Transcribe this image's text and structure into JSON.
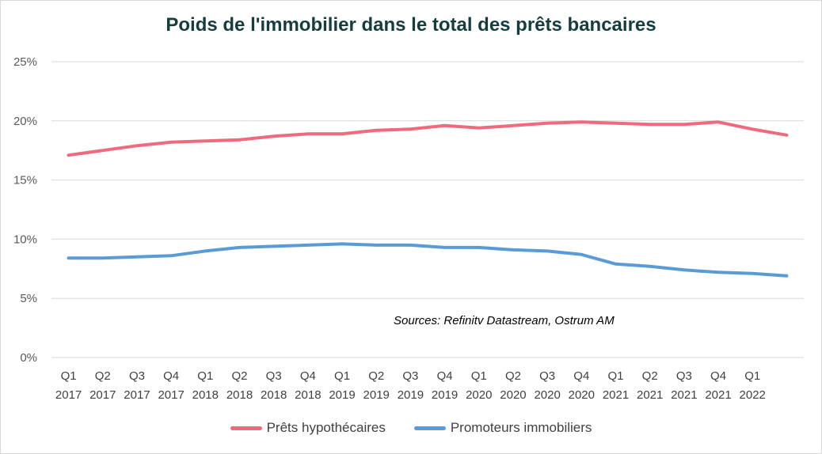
{
  "chart_data": {
    "type": "line",
    "title": "Poids de l'immobilier dans le total des prêts bancaires",
    "annotation": "Sources: Refinitv Datastream, Ostrum AM",
    "y_tick_labels": [
      "0%",
      "5%",
      "10%",
      "15%",
      "20%",
      "25%"
    ],
    "y_ticks": [
      0,
      5,
      10,
      15,
      20,
      25
    ],
    "ylim": [
      0,
      25
    ],
    "y_unit": "%",
    "grid": true,
    "legend_position": "bottom",
    "categories": [
      "Q1 2017",
      "Q2 2017",
      "Q3 2017",
      "Q4 2017",
      "Q1 2018",
      "Q2 2018",
      "Q3 2018",
      "Q4 2018",
      "Q1 2019",
      "Q2 2019",
      "Q3 2019",
      "Q4 2019",
      "Q1 2020",
      "Q2 2020",
      "Q3 2020",
      "Q4 2020",
      "Q1 2021",
      "Q2 2021",
      "Q3 2021",
      "Q4 2021",
      "Q1 2022",
      ""
    ],
    "category_labels": [
      [
        "Q1",
        "2017"
      ],
      [
        "Q2",
        "2017"
      ],
      [
        "Q3",
        "2017"
      ],
      [
        "Q4",
        "2017"
      ],
      [
        "Q1",
        "2018"
      ],
      [
        "Q2",
        "2018"
      ],
      [
        "Q3",
        "2018"
      ],
      [
        "Q4",
        "2018"
      ],
      [
        "Q1",
        "2019"
      ],
      [
        "Q2",
        "2019"
      ],
      [
        "Q3",
        "2019"
      ],
      [
        "Q4",
        "2019"
      ],
      [
        "Q1",
        "2020"
      ],
      [
        "Q2",
        "2020"
      ],
      [
        "Q3",
        "2020"
      ],
      [
        "Q4",
        "2020"
      ],
      [
        "Q1",
        "2021"
      ],
      [
        "Q2",
        "2021"
      ],
      [
        "Q3",
        "2021"
      ],
      [
        "Q4",
        "2021"
      ],
      [
        "Q1",
        "2022"
      ],
      [
        "",
        ""
      ]
    ],
    "series": [
      {
        "name": "Prêts hypothécaires",
        "color": "#ee6a7c",
        "values": [
          17.1,
          17.5,
          17.9,
          18.2,
          18.3,
          18.4,
          18.7,
          18.9,
          18.9,
          19.2,
          19.3,
          19.6,
          19.4,
          19.6,
          19.8,
          19.9,
          19.8,
          19.7,
          19.7,
          19.9,
          19.3,
          18.8
        ]
      },
      {
        "name": "Promoteurs immobiliers",
        "color": "#5b9bd5",
        "values": [
          8.4,
          8.4,
          8.5,
          8.6,
          9.0,
          9.3,
          9.4,
          9.5,
          9.6,
          9.5,
          9.5,
          9.3,
          9.3,
          9.1,
          9.0,
          8.7,
          7.9,
          7.7,
          7.4,
          7.2,
          7.1,
          6.9
        ]
      }
    ]
  }
}
